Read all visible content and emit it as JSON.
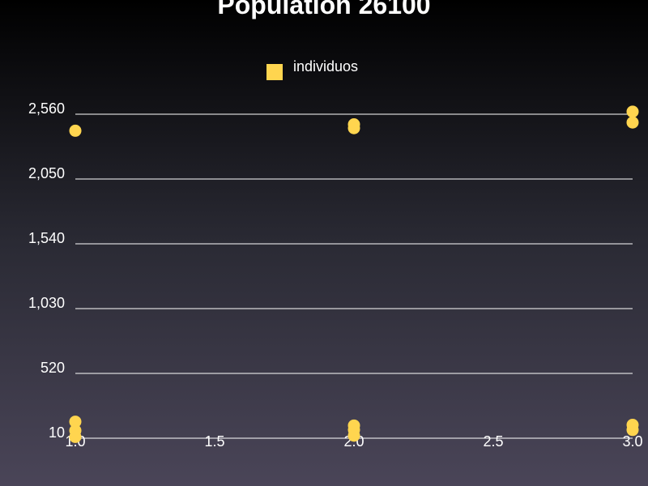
{
  "chart_data": {
    "type": "scatter",
    "title": "Population 26100",
    "xlabel": "",
    "ylabel": "",
    "x_ticks": [
      1.0,
      1.5,
      2.0,
      2.5,
      3.0
    ],
    "x_tick_labels": [
      "1.0",
      "1.5",
      "2.0",
      "2.5",
      "3.0"
    ],
    "y_ticks": [
      10,
      520,
      1030,
      1540,
      2050,
      2560
    ],
    "y_tick_labels": [
      "10",
      "520",
      "1,030",
      "1,540",
      "2,050",
      "2,560"
    ],
    "xlim": [
      1.0,
      3.0
    ],
    "ylim": [
      10,
      2560
    ],
    "grid": true,
    "legend_position": "top-center",
    "series": [
      {
        "name": "individuos",
        "color": "#ffd54f",
        "points": [
          {
            "x": 1.0,
            "y": 2430
          },
          {
            "x": 1.0,
            "y": 140
          },
          {
            "x": 1.0,
            "y": 70
          },
          {
            "x": 1.0,
            "y": 20
          },
          {
            "x": 2.0,
            "y": 2480
          },
          {
            "x": 2.0,
            "y": 2450
          },
          {
            "x": 2.0,
            "y": 110
          },
          {
            "x": 2.0,
            "y": 75
          },
          {
            "x": 2.0,
            "y": 30
          },
          {
            "x": 3.0,
            "y": 2580
          },
          {
            "x": 3.0,
            "y": 2495
          },
          {
            "x": 3.0,
            "y": 115
          },
          {
            "x": 3.0,
            "y": 75
          }
        ]
      }
    ]
  }
}
